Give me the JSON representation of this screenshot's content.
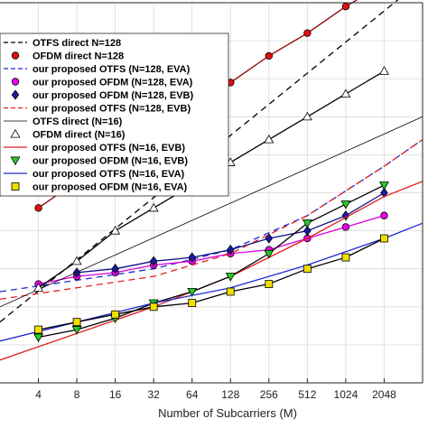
{
  "chart_data": {
    "type": "line",
    "xlabel": "Number of Subcarriers (M)",
    "ylabel": "",
    "xscale": "log2",
    "x_ticks": [
      4,
      8,
      16,
      32,
      64,
      128,
      256,
      512,
      1024,
      2048
    ],
    "x_tick_labels": [
      "4",
      "8",
      "16",
      "32",
      "64",
      "128",
      "256",
      "512",
      "1024",
      "2048"
    ],
    "x_range": [
      2,
      4096
    ],
    "ylim": [
      0,
      1
    ],
    "grid": true,
    "legend_position": "top-left",
    "series": [
      {
        "name": "OTFS direct N=128",
        "color": "#000000",
        "dash": "dashed",
        "marker": "none",
        "x": [
          2,
          4096
        ],
        "y": [
          0.16,
          1.06
        ]
      },
      {
        "name": "OFDM direct N=128",
        "color": "#8b0000",
        "dash": "none",
        "marker": "circle-red",
        "x": [
          4,
          8,
          16,
          32,
          64,
          128,
          256,
          512,
          1024,
          2048
        ],
        "y": [
          0.46,
          0.53,
          0.6,
          0.66,
          0.73,
          0.79,
          0.86,
          0.92,
          0.99,
          1.05
        ]
      },
      {
        "name": "our proposed OTFS (N=128, EVA)",
        "color": "#1f2bd0",
        "dash": "dashed",
        "marker": "none",
        "x": [
          2,
          32,
          128,
          512,
          2048,
          4096
        ],
        "y": [
          0.24,
          0.3,
          0.35,
          0.44,
          0.57,
          0.64
        ]
      },
      {
        "name": "our proposed OFDM (N=128, EVA)",
        "color": "#dd00dd",
        "dash": "none",
        "marker": "circle-magenta",
        "x": [
          4,
          8,
          16,
          32,
          64,
          128,
          256,
          512,
          1024,
          2048
        ],
        "y": [
          0.26,
          0.28,
          0.29,
          0.31,
          0.32,
          0.34,
          0.35,
          0.38,
          0.41,
          0.44
        ]
      },
      {
        "name": "our proposed OFDM (N=128, EVB)",
        "color": "#10108a",
        "dash": "none",
        "marker": "diamond-blue",
        "x": [
          8,
          16,
          32,
          64,
          128,
          256,
          512,
          1024,
          2048
        ],
        "y": [
          0.29,
          0.3,
          0.32,
          0.33,
          0.35,
          0.38,
          0.4,
          0.44,
          0.5
        ]
      },
      {
        "name": "our proposed OTFS (N=128, EVB)",
        "color": "#e02020",
        "dash": "dashed",
        "marker": "none",
        "x": [
          2,
          32,
          128,
          512,
          2048,
          4096
        ],
        "y": [
          0.22,
          0.28,
          0.34,
          0.44,
          0.57,
          0.64
        ]
      },
      {
        "name": "OTFS direct (N=16)",
        "color": "#000000",
        "dash": "none",
        "marker": "none",
        "thin": true,
        "x": [
          2,
          4096
        ],
        "y": [
          0.2,
          0.7
        ]
      },
      {
        "name": "OFDM direct (N=16)",
        "color": "#000000",
        "dash": "none",
        "marker": "triangle-up-white",
        "x": [
          4,
          8,
          16,
          32,
          64,
          128,
          256,
          512,
          1024,
          2048
        ],
        "y": [
          0.25,
          0.32,
          0.4,
          0.46,
          0.52,
          0.58,
          0.64,
          0.7,
          0.76,
          0.82
        ]
      },
      {
        "name": "our proposed OTFS (N=16, EVB)",
        "color": "#e02020",
        "dash": "none",
        "marker": "none",
        "x": [
          2,
          32,
          128,
          512,
          2048,
          4096
        ],
        "y": [
          0.06,
          0.2,
          0.28,
          0.38,
          0.49,
          0.53
        ]
      },
      {
        "name": "our proposed OFDM (N=16, EVB)",
        "color": "#000000",
        "dash": "none",
        "marker": "triangle-down-green",
        "x": [
          4,
          8,
          16,
          32,
          64,
          128,
          256,
          512,
          1024,
          2048
        ],
        "y": [
          0.12,
          0.14,
          0.17,
          0.21,
          0.24,
          0.28,
          0.34,
          0.42,
          0.47,
          0.52
        ]
      },
      {
        "name": "our proposed OTFS (N=16, EVA)",
        "color": "#1f2bd0",
        "dash": "none",
        "marker": "none",
        "x": [
          2,
          32,
          128,
          512,
          2048,
          4096
        ],
        "y": [
          0.11,
          0.21,
          0.25,
          0.31,
          0.38,
          0.42
        ]
      },
      {
        "name": "our proposed OFDM (N=16, EVA)",
        "color": "#000000",
        "dash": "none",
        "marker": "square-yellow",
        "x": [
          4,
          8,
          16,
          32,
          64,
          128,
          256,
          512,
          1024,
          2048
        ],
        "y": [
          0.14,
          0.16,
          0.18,
          0.2,
          0.21,
          0.24,
          0.26,
          0.3,
          0.33,
          0.38
        ]
      }
    ]
  }
}
